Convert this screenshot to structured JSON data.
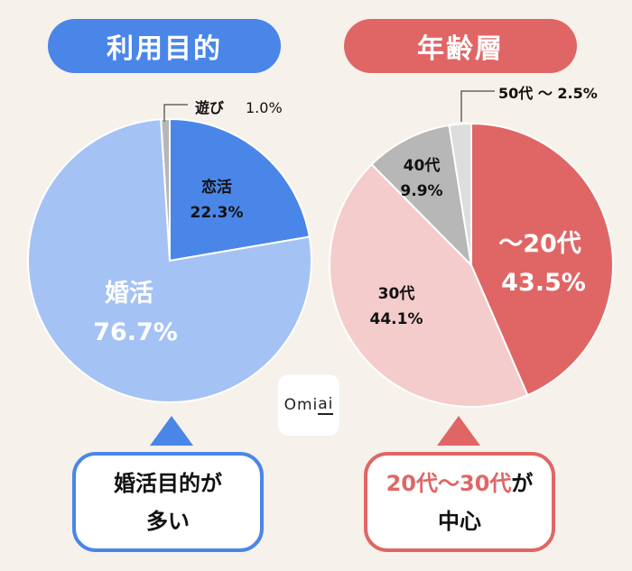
{
  "headers": {
    "left": "利用目的",
    "right": "年齢層"
  },
  "colors": {
    "blue": "#4a86e8",
    "light_blue": "#a4c2f4",
    "red": "#e06666",
    "pink": "#f4cccc",
    "gray": "#b7b7b7",
    "light_gray": "#dddddd"
  },
  "chart_data": [
    {
      "type": "pie",
      "title": "利用目的",
      "slices": [
        {
          "label": "恋活",
          "value": 22.3,
          "value_text": "22.3%",
          "color": "#4a86e8"
        },
        {
          "label": "婚活",
          "value": 76.7,
          "value_text": "76.7%",
          "color": "#a4c2f4"
        },
        {
          "label": "遊び",
          "value": 1.0,
          "value_text": "1.0%",
          "color": "#b7b7b7"
        }
      ]
    },
    {
      "type": "pie",
      "title": "年齢層",
      "slices": [
        {
          "label": "～20代",
          "value": 43.5,
          "value_text": "43.5%",
          "color": "#e06666"
        },
        {
          "label": "30代",
          "value": 44.1,
          "value_text": "44.1%",
          "color": "#f4cccc"
        },
        {
          "label": "40代",
          "value": 9.9,
          "value_text": "9.9%",
          "color": "#b7b7b7"
        },
        {
          "label": "50代 ～ 2.5%",
          "value": 2.5,
          "value_text": "",
          "color": "#dddddd"
        }
      ]
    }
  ],
  "callouts": {
    "left": {
      "line1": "婚活目的が",
      "line2": "多い"
    },
    "right": {
      "highlight": "20代～30代",
      "rest": "が",
      "line2": "中心"
    }
  },
  "logo": {
    "pre": "Omi",
    "underlined": "ai"
  }
}
